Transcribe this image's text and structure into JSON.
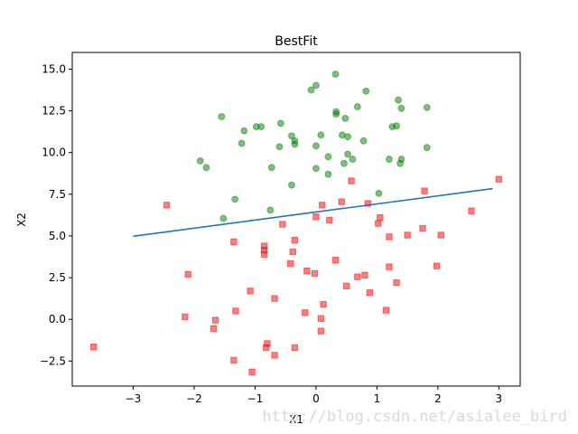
{
  "chart_data": {
    "type": "scatter",
    "title": "BestFit",
    "xlabel": "X1",
    "ylabel": "X2",
    "xlim": [
      -4.0,
      3.35
    ],
    "ylim": [
      -4.0,
      16.0
    ],
    "xticks": [
      -3,
      -2,
      -1,
      0,
      1,
      2,
      3
    ],
    "xtick_labels": [
      "−3",
      "−2",
      "−1",
      "0",
      "1",
      "2",
      "3"
    ],
    "yticks": [
      -2.5,
      0.0,
      2.5,
      5.0,
      7.5,
      10.0,
      12.5,
      15.0
    ],
    "ytick_labels": [
      "−2.5",
      "0.0",
      "2.5",
      "5.0",
      "7.5",
      "10.0",
      "12.5",
      "15.0"
    ],
    "grid": false,
    "series": [
      {
        "marker": "circle",
        "color": "#008000",
        "points": [
          [
            0.32,
            14.7
          ],
          [
            -0.08,
            13.75
          ],
          [
            0.0,
            14.02
          ],
          [
            0.82,
            13.68
          ],
          [
            1.35,
            13.15
          ],
          [
            0.33,
            12.45
          ],
          [
            1.4,
            12.65
          ],
          [
            1.82,
            12.7
          ],
          [
            -1.55,
            12.15
          ],
          [
            0.33,
            12.3
          ],
          [
            0.48,
            12.05
          ],
          [
            0.68,
            12.75
          ],
          [
            -0.58,
            11.75
          ],
          [
            -0.9,
            11.55
          ],
          [
            -1.18,
            11.3
          ],
          [
            -0.98,
            11.55
          ],
          [
            1.25,
            11.55
          ],
          [
            1.32,
            11.6
          ],
          [
            -0.4,
            11.0
          ],
          [
            0.43,
            11.05
          ],
          [
            0.52,
            10.95
          ],
          [
            0.08,
            11.05
          ],
          [
            -1.22,
            10.55
          ],
          [
            -0.35,
            10.7
          ],
          [
            -0.35,
            10.5
          ],
          [
            0.78,
            10.7
          ],
          [
            -0.6,
            10.35
          ],
          [
            0.0,
            10.4
          ],
          [
            1.82,
            10.3
          ],
          [
            0.52,
            9.9
          ],
          [
            0.2,
            9.75
          ],
          [
            1.4,
            9.6
          ],
          [
            1.2,
            9.6
          ],
          [
            0.6,
            9.6
          ],
          [
            0.46,
            9.35
          ],
          [
            1.38,
            9.35
          ],
          [
            -1.9,
            9.5
          ],
          [
            -1.8,
            9.1
          ],
          [
            -0.73,
            9.1
          ],
          [
            0.0,
            9.05
          ],
          [
            0.2,
            8.7
          ],
          [
            -0.4,
            8.05
          ],
          [
            1.03,
            7.55
          ],
          [
            -1.33,
            7.2
          ],
          [
            -0.75,
            6.55
          ],
          [
            -1.52,
            6.05
          ]
        ]
      },
      {
        "marker": "square",
        "color": "#ff0000",
        "points": [
          [
            3.0,
            8.4
          ],
          [
            0.58,
            8.3
          ],
          [
            1.78,
            7.7
          ],
          [
            0.42,
            7.05
          ],
          [
            0.1,
            6.85
          ],
          [
            0.85,
            6.95
          ],
          [
            -2.45,
            6.85
          ],
          [
            2.55,
            6.5
          ],
          [
            0.0,
            6.15
          ],
          [
            1.05,
            6.1
          ],
          [
            0.22,
            5.95
          ],
          [
            1.02,
            5.75
          ],
          [
            -0.55,
            5.7
          ],
          [
            1.75,
            5.45
          ],
          [
            1.2,
            4.95
          ],
          [
            1.5,
            5.05
          ],
          [
            2.05,
            5.05
          ],
          [
            -1.35,
            4.65
          ],
          [
            -0.35,
            4.75
          ],
          [
            -0.85,
            4.4
          ],
          [
            -0.85,
            4.15
          ],
          [
            -0.85,
            3.9
          ],
          [
            -0.38,
            4.05
          ],
          [
            0.32,
            3.55
          ],
          [
            -0.42,
            3.35
          ],
          [
            1.2,
            3.15
          ],
          [
            1.98,
            3.2
          ],
          [
            -2.1,
            2.7
          ],
          [
            -0.15,
            2.9
          ],
          [
            -0.02,
            2.75
          ],
          [
            0.8,
            2.65
          ],
          [
            0.68,
            2.55
          ],
          [
            1.32,
            2.2
          ],
          [
            0.5,
            2.0
          ],
          [
            -1.08,
            1.7
          ],
          [
            0.88,
            1.6
          ],
          [
            -0.68,
            1.25
          ],
          [
            0.12,
            0.9
          ],
          [
            1.15,
            0.55
          ],
          [
            -1.32,
            0.5
          ],
          [
            -0.18,
            0.4
          ],
          [
            -2.15,
            0.15
          ],
          [
            0.08,
            0.05
          ],
          [
            -1.65,
            -0.05
          ],
          [
            -1.68,
            -0.55
          ],
          [
            0.08,
            -0.7
          ],
          [
            -0.8,
            -1.45
          ],
          [
            -0.82,
            -1.7
          ],
          [
            -3.65,
            -1.65
          ],
          [
            -0.35,
            -1.7
          ],
          [
            -0.68,
            -2.15
          ],
          [
            -1.35,
            -2.45
          ],
          [
            -1.05,
            -3.15
          ]
        ]
      }
    ],
    "fit_line": {
      "color": "#1f77b4",
      "x": [
        -3.0,
        2.9
      ],
      "y": [
        4.98,
        7.84
      ]
    }
  },
  "watermark": "http://blog.csdn.net/asialee_bird"
}
